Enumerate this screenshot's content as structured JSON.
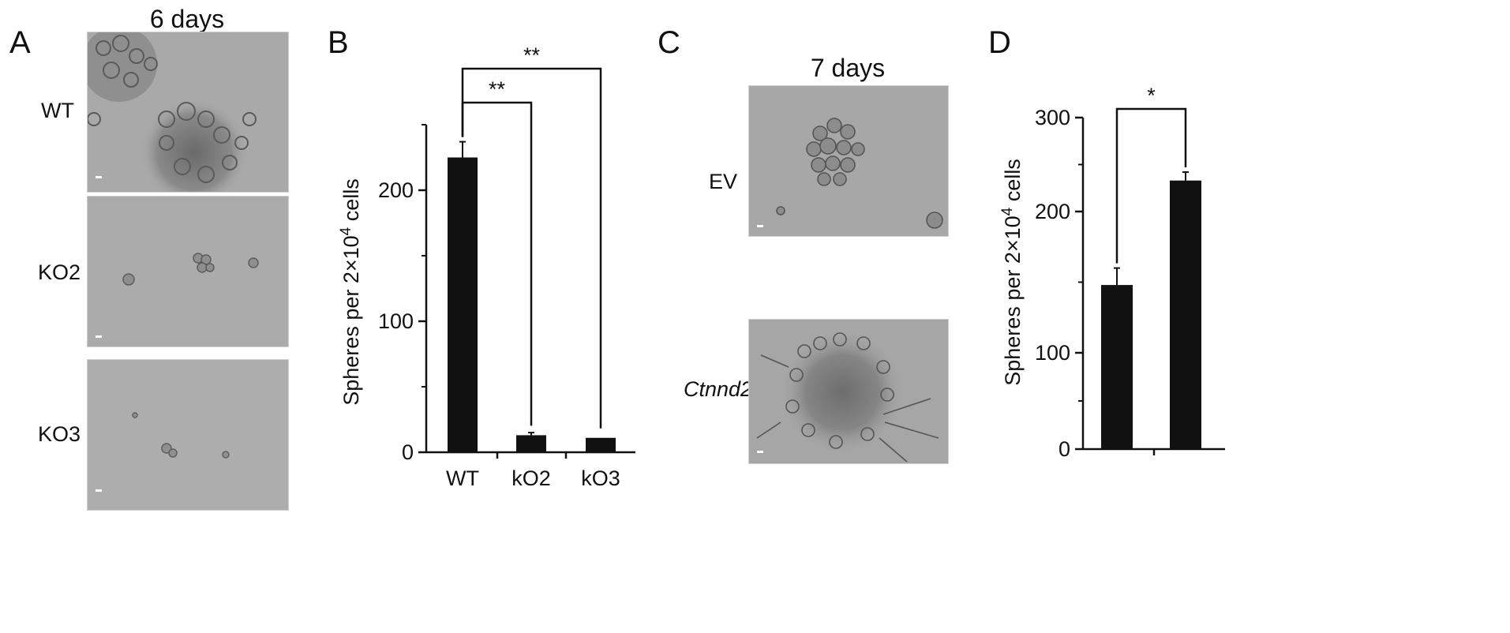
{
  "panels": {
    "A": {
      "letter": "A",
      "title": "6 days",
      "rows": [
        "WT",
        "KO2",
        "KO3"
      ]
    },
    "B": {
      "letter": "B"
    },
    "C": {
      "letter": "C",
      "title": "7 days",
      "rows": [
        "EV",
        "Ctnnd2"
      ]
    },
    "D": {
      "letter": "D"
    }
  },
  "chart_data": [
    {
      "type": "bar",
      "panel": "B",
      "categories": [
        "WT",
        "kO2",
        "kO3"
      ],
      "values": [
        225,
        13,
        11
      ],
      "errors": [
        12,
        2,
        0
      ],
      "ylabel": "Spheres per 2×10",
      "ylabel_sup": "4",
      "ylabel_tail": " cells",
      "ylim": [
        0,
        250
      ],
      "yticks": [
        0,
        100,
        200
      ],
      "grid": false,
      "significance": [
        {
          "from": 0,
          "to": 1,
          "label": "**"
        },
        {
          "from": 0,
          "to": 2,
          "label": "**"
        }
      ]
    },
    {
      "type": "bar",
      "panel": "D",
      "categories": [
        "",
        ""
      ],
      "values": [
        148,
        233
      ],
      "errors": [
        12,
        9
      ],
      "ylabel": "Spheres per 2×10",
      "ylabel_sup": "4",
      "ylabel_tail": " cells",
      "ylim": [
        0,
        300
      ],
      "yticks": [
        0,
        100,
        200,
        300
      ],
      "yscale": "non-uniform",
      "grid": false,
      "significance": [
        {
          "from": 0,
          "to": 1,
          "label": "*"
        }
      ]
    }
  ]
}
